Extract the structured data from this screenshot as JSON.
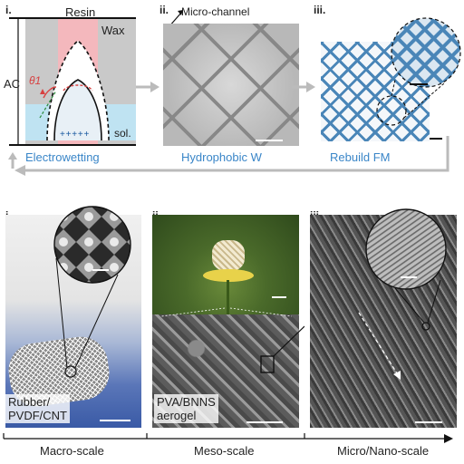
{
  "top": {
    "panel_i": {
      "roman": "i.",
      "resin_label": "Resin",
      "wax_label": "Wax",
      "ac_label": "AC",
      "theta_label": "θ1",
      "sol_label": "sol.",
      "charges": "+ + + + +",
      "caption": "Electrowetting"
    },
    "panel_ii": {
      "roman": "ii.",
      "channel_label": "Micro-channel",
      "caption": "Hydrophobic W"
    },
    "panel_iii": {
      "roman": "iii.",
      "caption": "Rebuild FM"
    }
  },
  "bottom": {
    "panel_i": {
      "roman": "i.",
      "label_line1": "Rubber/",
      "label_line2": "PVDF/CNT"
    },
    "panel_ii": {
      "roman": "ii.",
      "label_line1": "PVA/BNNS",
      "label_line2": "aerogel"
    },
    "panel_iii": {
      "roman": "iii."
    }
  },
  "scale_axis": {
    "labels": [
      "Macro-scale",
      "Meso-scale",
      "Micro/Nano-scale"
    ]
  },
  "colors": {
    "caption_blue": "#3a86c8",
    "wax_pink": "#f4b8bd",
    "sol_blue": "#bfe3f2",
    "lattice_blue": "#4a86b8"
  }
}
